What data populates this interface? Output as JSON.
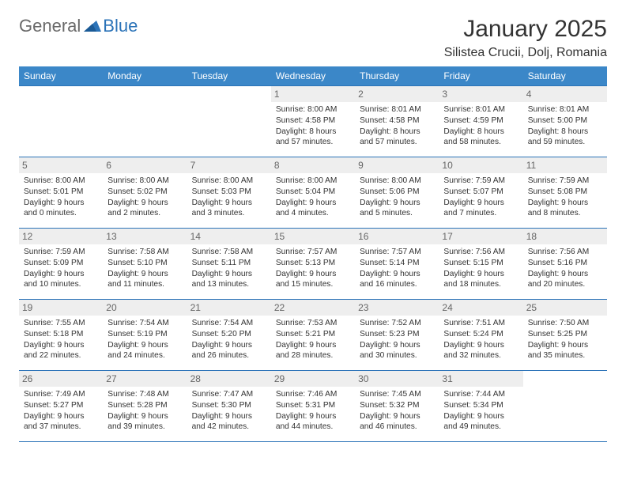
{
  "logo": {
    "general": "General",
    "blue": "Blue"
  },
  "title": "January 2025",
  "location": "Silistea Crucii, Dolj, Romania",
  "colors": {
    "header_bg": "#3b87c8",
    "header_fg": "#ffffff",
    "rule": "#2b73b8",
    "daynum_bg": "#eeeeee",
    "daynum_fg": "#666666",
    "text": "#333333",
    "logo_gray": "#6a6a6a",
    "logo_blue": "#2b73b8"
  },
  "weekdays": [
    "Sunday",
    "Monday",
    "Tuesday",
    "Wednesday",
    "Thursday",
    "Friday",
    "Saturday"
  ],
  "weeks": [
    [
      null,
      null,
      null,
      {
        "n": "1",
        "sr": "Sunrise: 8:00 AM",
        "ss": "Sunset: 4:58 PM",
        "d1": "Daylight: 8 hours",
        "d2": "and 57 minutes."
      },
      {
        "n": "2",
        "sr": "Sunrise: 8:01 AM",
        "ss": "Sunset: 4:58 PM",
        "d1": "Daylight: 8 hours",
        "d2": "and 57 minutes."
      },
      {
        "n": "3",
        "sr": "Sunrise: 8:01 AM",
        "ss": "Sunset: 4:59 PM",
        "d1": "Daylight: 8 hours",
        "d2": "and 58 minutes."
      },
      {
        "n": "4",
        "sr": "Sunrise: 8:01 AM",
        "ss": "Sunset: 5:00 PM",
        "d1": "Daylight: 8 hours",
        "d2": "and 59 minutes."
      }
    ],
    [
      {
        "n": "5",
        "sr": "Sunrise: 8:00 AM",
        "ss": "Sunset: 5:01 PM",
        "d1": "Daylight: 9 hours",
        "d2": "and 0 minutes."
      },
      {
        "n": "6",
        "sr": "Sunrise: 8:00 AM",
        "ss": "Sunset: 5:02 PM",
        "d1": "Daylight: 9 hours",
        "d2": "and 2 minutes."
      },
      {
        "n": "7",
        "sr": "Sunrise: 8:00 AM",
        "ss": "Sunset: 5:03 PM",
        "d1": "Daylight: 9 hours",
        "d2": "and 3 minutes."
      },
      {
        "n": "8",
        "sr": "Sunrise: 8:00 AM",
        "ss": "Sunset: 5:04 PM",
        "d1": "Daylight: 9 hours",
        "d2": "and 4 minutes."
      },
      {
        "n": "9",
        "sr": "Sunrise: 8:00 AM",
        "ss": "Sunset: 5:06 PM",
        "d1": "Daylight: 9 hours",
        "d2": "and 5 minutes."
      },
      {
        "n": "10",
        "sr": "Sunrise: 7:59 AM",
        "ss": "Sunset: 5:07 PM",
        "d1": "Daylight: 9 hours",
        "d2": "and 7 minutes."
      },
      {
        "n": "11",
        "sr": "Sunrise: 7:59 AM",
        "ss": "Sunset: 5:08 PM",
        "d1": "Daylight: 9 hours",
        "d2": "and 8 minutes."
      }
    ],
    [
      {
        "n": "12",
        "sr": "Sunrise: 7:59 AM",
        "ss": "Sunset: 5:09 PM",
        "d1": "Daylight: 9 hours",
        "d2": "and 10 minutes."
      },
      {
        "n": "13",
        "sr": "Sunrise: 7:58 AM",
        "ss": "Sunset: 5:10 PM",
        "d1": "Daylight: 9 hours",
        "d2": "and 11 minutes."
      },
      {
        "n": "14",
        "sr": "Sunrise: 7:58 AM",
        "ss": "Sunset: 5:11 PM",
        "d1": "Daylight: 9 hours",
        "d2": "and 13 minutes."
      },
      {
        "n": "15",
        "sr": "Sunrise: 7:57 AM",
        "ss": "Sunset: 5:13 PM",
        "d1": "Daylight: 9 hours",
        "d2": "and 15 minutes."
      },
      {
        "n": "16",
        "sr": "Sunrise: 7:57 AM",
        "ss": "Sunset: 5:14 PM",
        "d1": "Daylight: 9 hours",
        "d2": "and 16 minutes."
      },
      {
        "n": "17",
        "sr": "Sunrise: 7:56 AM",
        "ss": "Sunset: 5:15 PM",
        "d1": "Daylight: 9 hours",
        "d2": "and 18 minutes."
      },
      {
        "n": "18",
        "sr": "Sunrise: 7:56 AM",
        "ss": "Sunset: 5:16 PM",
        "d1": "Daylight: 9 hours",
        "d2": "and 20 minutes."
      }
    ],
    [
      {
        "n": "19",
        "sr": "Sunrise: 7:55 AM",
        "ss": "Sunset: 5:18 PM",
        "d1": "Daylight: 9 hours",
        "d2": "and 22 minutes."
      },
      {
        "n": "20",
        "sr": "Sunrise: 7:54 AM",
        "ss": "Sunset: 5:19 PM",
        "d1": "Daylight: 9 hours",
        "d2": "and 24 minutes."
      },
      {
        "n": "21",
        "sr": "Sunrise: 7:54 AM",
        "ss": "Sunset: 5:20 PM",
        "d1": "Daylight: 9 hours",
        "d2": "and 26 minutes."
      },
      {
        "n": "22",
        "sr": "Sunrise: 7:53 AM",
        "ss": "Sunset: 5:21 PM",
        "d1": "Daylight: 9 hours",
        "d2": "and 28 minutes."
      },
      {
        "n": "23",
        "sr": "Sunrise: 7:52 AM",
        "ss": "Sunset: 5:23 PM",
        "d1": "Daylight: 9 hours",
        "d2": "and 30 minutes."
      },
      {
        "n": "24",
        "sr": "Sunrise: 7:51 AM",
        "ss": "Sunset: 5:24 PM",
        "d1": "Daylight: 9 hours",
        "d2": "and 32 minutes."
      },
      {
        "n": "25",
        "sr": "Sunrise: 7:50 AM",
        "ss": "Sunset: 5:25 PM",
        "d1": "Daylight: 9 hours",
        "d2": "and 35 minutes."
      }
    ],
    [
      {
        "n": "26",
        "sr": "Sunrise: 7:49 AM",
        "ss": "Sunset: 5:27 PM",
        "d1": "Daylight: 9 hours",
        "d2": "and 37 minutes."
      },
      {
        "n": "27",
        "sr": "Sunrise: 7:48 AM",
        "ss": "Sunset: 5:28 PM",
        "d1": "Daylight: 9 hours",
        "d2": "and 39 minutes."
      },
      {
        "n": "28",
        "sr": "Sunrise: 7:47 AM",
        "ss": "Sunset: 5:30 PM",
        "d1": "Daylight: 9 hours",
        "d2": "and 42 minutes."
      },
      {
        "n": "29",
        "sr": "Sunrise: 7:46 AM",
        "ss": "Sunset: 5:31 PM",
        "d1": "Daylight: 9 hours",
        "d2": "and 44 minutes."
      },
      {
        "n": "30",
        "sr": "Sunrise: 7:45 AM",
        "ss": "Sunset: 5:32 PM",
        "d1": "Daylight: 9 hours",
        "d2": "and 46 minutes."
      },
      {
        "n": "31",
        "sr": "Sunrise: 7:44 AM",
        "ss": "Sunset: 5:34 PM",
        "d1": "Daylight: 9 hours",
        "d2": "and 49 minutes."
      },
      null
    ]
  ]
}
